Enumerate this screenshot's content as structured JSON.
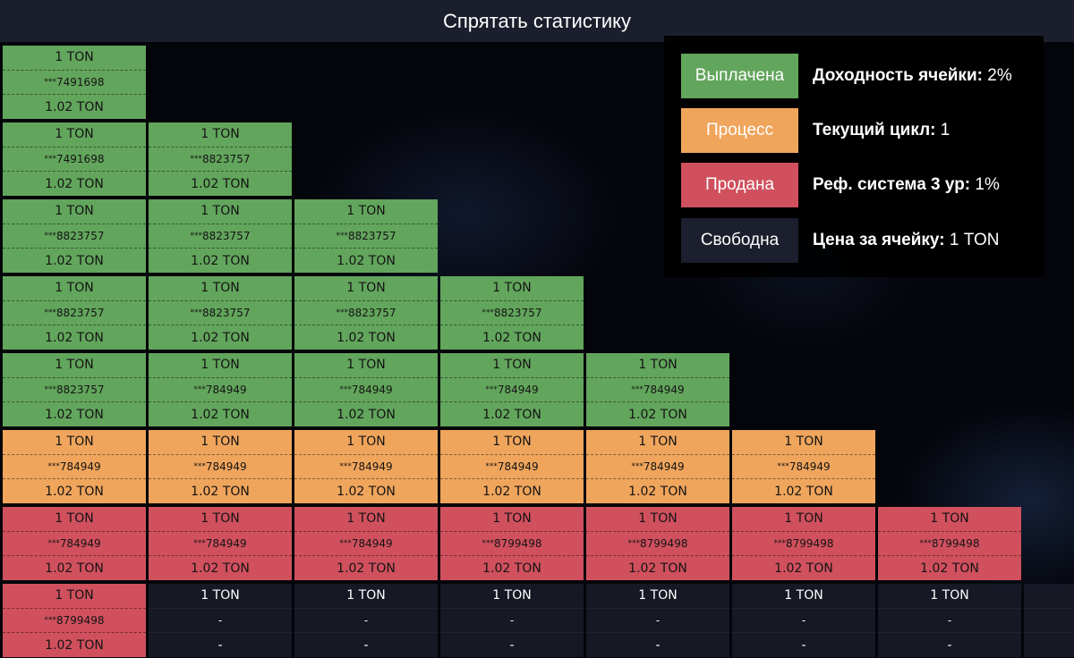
{
  "header": {
    "toggle_label": "Спрятать статистику"
  },
  "colors": {
    "paid": "#62a55c",
    "process": "#f0a55c",
    "sold": "#d0505e",
    "free": "#1c1f2d"
  },
  "legend": {
    "items": [
      {
        "status": "paid",
        "label": "Выплачена",
        "stat_label": "Доходность ячейки:",
        "stat_value": "2%"
      },
      {
        "status": "process",
        "label": "Процесс",
        "stat_label": "Текущий цикл:",
        "stat_value": "1"
      },
      {
        "status": "sold",
        "label": "Продана",
        "stat_label": "Реф. система 3 ур:",
        "stat_value": "1%"
      },
      {
        "status": "free",
        "label": "Свободна",
        "stat_label": "Цена за ячейку:",
        "stat_value": "1 TON"
      }
    ]
  },
  "grid": {
    "rows": [
      {
        "cells": [
          {
            "status": "paid",
            "price": "1 TON",
            "owner": "7491698",
            "payout": "1.02 TON"
          }
        ]
      },
      {
        "cells": [
          {
            "status": "paid",
            "price": "1 TON",
            "owner": "7491698",
            "payout": "1.02 TON"
          },
          {
            "status": "paid",
            "price": "1 TON",
            "owner": "8823757",
            "payout": "1.02 TON"
          }
        ]
      },
      {
        "cells": [
          {
            "status": "paid",
            "price": "1 TON",
            "owner": "8823757",
            "payout": "1.02 TON"
          },
          {
            "status": "paid",
            "price": "1 TON",
            "owner": "8823757",
            "payout": "1.02 TON"
          },
          {
            "status": "paid",
            "price": "1 TON",
            "owner": "8823757",
            "payout": "1.02 TON"
          }
        ]
      },
      {
        "cells": [
          {
            "status": "paid",
            "price": "1 TON",
            "owner": "8823757",
            "payout": "1.02 TON"
          },
          {
            "status": "paid",
            "price": "1 TON",
            "owner": "8823757",
            "payout": "1.02 TON"
          },
          {
            "status": "paid",
            "price": "1 TON",
            "owner": "8823757",
            "payout": "1.02 TON"
          },
          {
            "status": "paid",
            "price": "1 TON",
            "owner": "8823757",
            "payout": "1.02 TON"
          }
        ]
      },
      {
        "cells": [
          {
            "status": "paid",
            "price": "1 TON",
            "owner": "8823757",
            "payout": "1.02 TON"
          },
          {
            "status": "paid",
            "price": "1 TON",
            "owner": "784949",
            "payout": "1.02 TON"
          },
          {
            "status": "paid",
            "price": "1 TON",
            "owner": "784949",
            "payout": "1.02 TON"
          },
          {
            "status": "paid",
            "price": "1 TON",
            "owner": "784949",
            "payout": "1.02 TON"
          },
          {
            "status": "paid",
            "price": "1 TON",
            "owner": "784949",
            "payout": "1.02 TON"
          }
        ]
      },
      {
        "cells": [
          {
            "status": "process",
            "price": "1 TON",
            "owner": "784949",
            "payout": "1.02 TON"
          },
          {
            "status": "process",
            "price": "1 TON",
            "owner": "784949",
            "payout": "1.02 TON"
          },
          {
            "status": "process",
            "price": "1 TON",
            "owner": "784949",
            "payout": "1.02 TON"
          },
          {
            "status": "process",
            "price": "1 TON",
            "owner": "784949",
            "payout": "1.02 TON"
          },
          {
            "status": "process",
            "price": "1 TON",
            "owner": "784949",
            "payout": "1.02 TON"
          },
          {
            "status": "process",
            "price": "1 TON",
            "owner": "784949",
            "payout": "1.02 TON"
          }
        ]
      },
      {
        "cells": [
          {
            "status": "sold",
            "price": "1 TON",
            "owner": "784949",
            "payout": "1.02 TON"
          },
          {
            "status": "sold",
            "price": "1 TON",
            "owner": "784949",
            "payout": "1.02 TON"
          },
          {
            "status": "sold",
            "price": "1 TON",
            "owner": "784949",
            "payout": "1.02 TON"
          },
          {
            "status": "sold",
            "price": "1 TON",
            "owner": "8799498",
            "payout": "1.02 TON"
          },
          {
            "status": "sold",
            "price": "1 TON",
            "owner": "8799498",
            "payout": "1.02 TON"
          },
          {
            "status": "sold",
            "price": "1 TON",
            "owner": "8799498",
            "payout": "1.02 TON"
          },
          {
            "status": "sold",
            "price": "1 TON",
            "owner": "8799498",
            "payout": "1.02 TON"
          }
        ]
      },
      {
        "cells": [
          {
            "status": "sold",
            "price": "1 TON",
            "owner": "8799498",
            "payout": "1.02 TON"
          },
          {
            "status": "free",
            "price": "1 TON",
            "owner": "-",
            "payout": "-"
          },
          {
            "status": "free",
            "price": "1 TON",
            "owner": "-",
            "payout": "-"
          },
          {
            "status": "free",
            "price": "1 TON",
            "owner": "-",
            "payout": "-"
          },
          {
            "status": "free",
            "price": "1 TON",
            "owner": "-",
            "payout": "-"
          },
          {
            "status": "free",
            "price": "1 TON",
            "owner": "-",
            "payout": "-"
          },
          {
            "status": "free",
            "price": "1 TON",
            "owner": "-",
            "payout": "-"
          },
          {
            "status": "free",
            "price": "",
            "owner": "",
            "payout": ""
          }
        ]
      }
    ]
  }
}
